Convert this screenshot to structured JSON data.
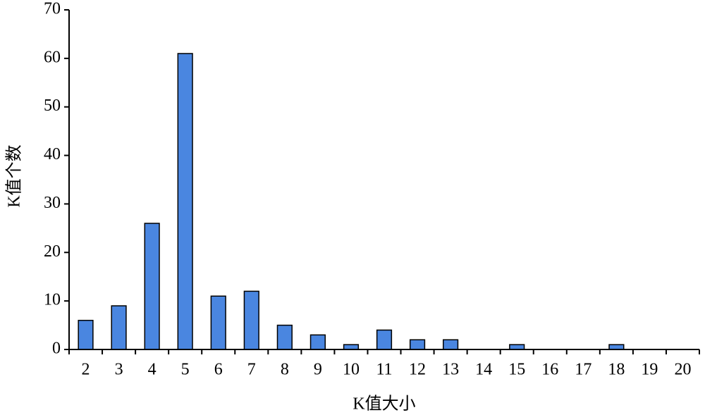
{
  "chart_data": {
    "type": "bar",
    "x_label": "K值大小",
    "y_label": "K值个数",
    "categories": [
      "2",
      "3",
      "4",
      "5",
      "6",
      "7",
      "8",
      "9",
      "10",
      "11",
      "12",
      "13",
      "14",
      "15",
      "16",
      "17",
      "18",
      "19",
      "20"
    ],
    "values": [
      6,
      9,
      26,
      61,
      11,
      12,
      5,
      3,
      1,
      4,
      2,
      2,
      0,
      1,
      0,
      0,
      1,
      0,
      0
    ],
    "color": "#4a86e0",
    "ylim": [
      0,
      70
    ],
    "yticks": [
      0,
      10,
      20,
      30,
      40,
      50,
      60,
      70
    ],
    "grid": false
  }
}
